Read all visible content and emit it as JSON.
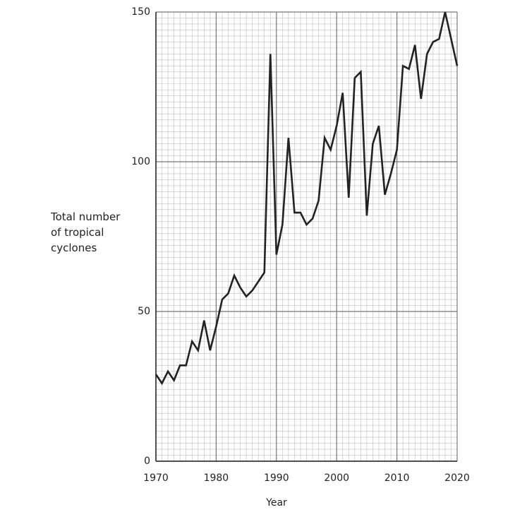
{
  "chart_data": {
    "type": "line",
    "xlabel": "Year",
    "ylabel": "Total number of tropical cyclones",
    "x": [
      1970,
      1971,
      1972,
      1973,
      1974,
      1975,
      1976,
      1977,
      1978,
      1979,
      1980,
      1981,
      1982,
      1983,
      1984,
      1985,
      1986,
      1987,
      1988,
      1989,
      1990,
      1991,
      1992,
      1993,
      1994,
      1995,
      1996,
      1997,
      1998,
      1999,
      2000,
      2001,
      2002,
      2003,
      2004,
      2005,
      2006,
      2007,
      2008,
      2009,
      2010,
      2011,
      2012,
      2013,
      2014,
      2015,
      2016,
      2017,
      2018,
      2019,
      2020
    ],
    "values": [
      29,
      26,
      30,
      27,
      32,
      32,
      40,
      37,
      47,
      37,
      45,
      54,
      56,
      62,
      58,
      55,
      57,
      60,
      63,
      136,
      69,
      79,
      108,
      83,
      83,
      79,
      81,
      87,
      108,
      104,
      112,
      123,
      88,
      128,
      130,
      82,
      106,
      112,
      89,
      96,
      104,
      132,
      131,
      139,
      121,
      136,
      140,
      141,
      150,
      141,
      132
    ],
    "color": "#222222",
    "xlim": [
      1970,
      2020
    ],
    "xticks": [
      1970,
      1980,
      1990,
      2000,
      2010,
      2020
    ],
    "ylim": [
      0,
      150
    ],
    "yticks": [
      0,
      50,
      100,
      150
    ],
    "grid": true,
    "minor_grid": {
      "x": 1,
      "y": 2
    }
  }
}
